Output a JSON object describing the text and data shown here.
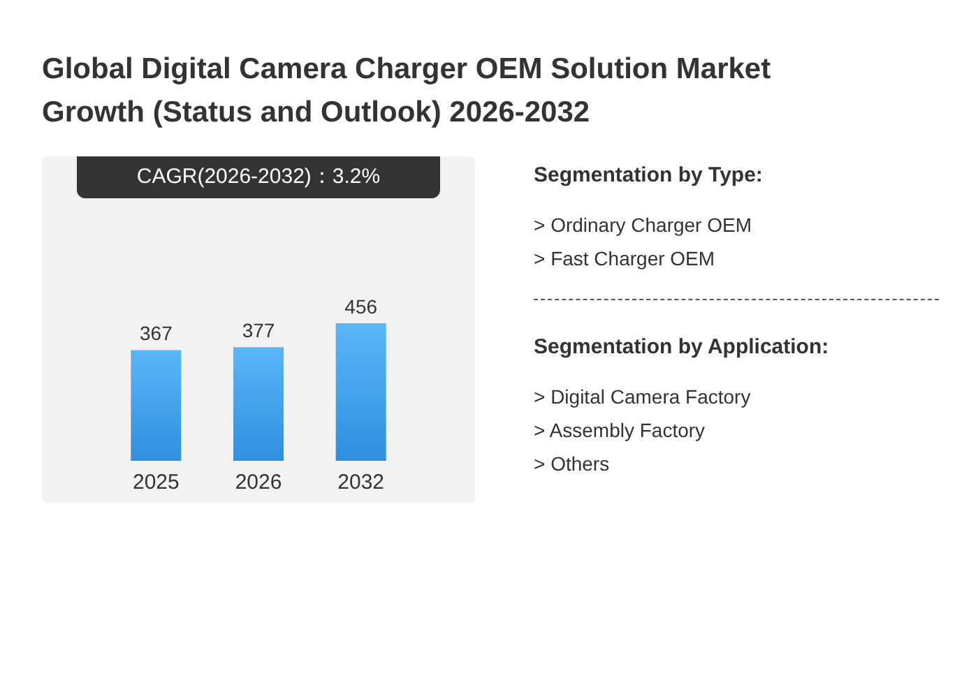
{
  "chart_data": {
    "type": "bar",
    "title": "Global Digital Camera Charger OEM Solution Market Growth (Status and Outlook) 2026-2032",
    "categories": [
      "2025",
      "2026",
      "2032"
    ],
    "values": [
      367,
      377,
      456
    ],
    "color": "#2f8fe0",
    "data_labels": true,
    "annotations": [
      "CAGR(2026-2032)：3.2%",
      "Segmentation by Type:",
      "> Ordinary Charger OEM",
      "> Fast Charger OEM",
      "Segmentation by Application:",
      "> Digital Camera Factory",
      "> Assembly Factory",
      "> Others"
    ]
  }
}
